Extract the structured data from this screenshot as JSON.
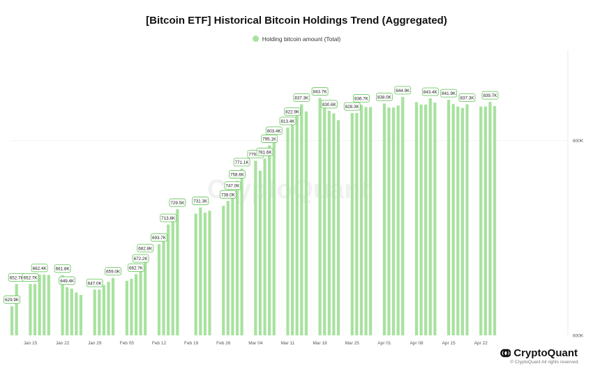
{
  "chart_data": {
    "type": "bar",
    "title": "[Bitcoin ETF] Historical Bitcoin Holdings Trend (Aggregated)",
    "legend": "Holding bitcoin amount (Total)",
    "watermark": "CryptoQuant",
    "bar_color": "#a8e29f",
    "ylim": [
      600,
      900
    ],
    "y_ticks": [
      "600K",
      "800K"
    ],
    "x_ticks": [
      "Jan 15",
      "Jan 22",
      "Jan 29",
      "Feb 05",
      "Feb 12",
      "Feb 19",
      "Feb 26",
      "Mar 04",
      "Mar 11",
      "Mar 18",
      "Mar 25",
      "Apr 01",
      "Apr 08",
      "Apr 15",
      "Apr 22"
    ],
    "days": [
      {
        "date": "2024-01-11",
        "value": 629.9,
        "label": "629.9K"
      },
      {
        "date": "2024-01-12",
        "value": 652.7,
        "label": "652.7K"
      },
      {
        "date": "2024-01-13",
        "value": null
      },
      {
        "date": "2024-01-14",
        "value": null
      },
      {
        "date": "2024-01-15",
        "value": 652.7,
        "label": "652.7K"
      },
      {
        "date": "2024-01-16",
        "value": 652.7
      },
      {
        "date": "2024-01-17",
        "value": 662.4,
        "label": "662.4K"
      },
      {
        "date": "2024-01-18",
        "value": 662.4
      },
      {
        "date": "2024-01-19",
        "value": 662.0
      },
      {
        "date": "2024-01-20",
        "value": null
      },
      {
        "date": "2024-01-21",
        "value": null
      },
      {
        "date": "2024-01-22",
        "value": 661.8,
        "label": "661.8K"
      },
      {
        "date": "2024-01-23",
        "value": 649.4,
        "label": "649.4K"
      },
      {
        "date": "2024-01-24",
        "value": 648.0
      },
      {
        "date": "2024-01-25",
        "value": 644.0
      },
      {
        "date": "2024-01-26",
        "value": 641.5
      },
      {
        "date": "2024-01-27",
        "value": null
      },
      {
        "date": "2024-01-28",
        "value": null
      },
      {
        "date": "2024-01-29",
        "value": 647.0,
        "label": "647.0K"
      },
      {
        "date": "2024-01-30",
        "value": 647.0
      },
      {
        "date": "2024-01-31",
        "value": 651.5
      },
      {
        "date": "2024-02-01",
        "value": 655.0
      },
      {
        "date": "2024-02-02",
        "value": 659.0,
        "label": "659.0K"
      },
      {
        "date": "2024-02-03",
        "value": null
      },
      {
        "date": "2024-02-04",
        "value": null
      },
      {
        "date": "2024-02-05",
        "value": 656.0
      },
      {
        "date": "2024-02-06",
        "value": 658.0
      },
      {
        "date": "2024-02-07",
        "value": 662.7,
        "label": "662.7K"
      },
      {
        "date": "2024-02-08",
        "value": 672.2,
        "label": "672.2K"
      },
      {
        "date": "2024-02-09",
        "value": 682.8,
        "label": "682.8K"
      },
      {
        "date": "2024-02-10",
        "value": null
      },
      {
        "date": "2024-02-11",
        "value": null
      },
      {
        "date": "2024-02-12",
        "value": 693.7,
        "label": "693.7K"
      },
      {
        "date": "2024-02-13",
        "value": 701.0
      },
      {
        "date": "2024-02-14",
        "value": 713.8,
        "label": "713.8K"
      },
      {
        "date": "2024-02-15",
        "value": 724.0
      },
      {
        "date": "2024-02-16",
        "value": 729.5,
        "label": "729.5K"
      },
      {
        "date": "2024-02-17",
        "value": null
      },
      {
        "date": "2024-02-18",
        "value": null
      },
      {
        "date": "2024-02-19",
        "value": null
      },
      {
        "date": "2024-02-20",
        "value": 725.0
      },
      {
        "date": "2024-02-21",
        "value": 731.3,
        "label": "731.3K"
      },
      {
        "date": "2024-02-22",
        "value": 726.0
      },
      {
        "date": "2024-02-23",
        "value": 728.0
      },
      {
        "date": "2024-02-24",
        "value": null
      },
      {
        "date": "2024-02-25",
        "value": null
      },
      {
        "date": "2024-02-26",
        "value": 733.0
      },
      {
        "date": "2024-02-27",
        "value": 738.0,
        "label": "738.0K"
      },
      {
        "date": "2024-02-28",
        "value": 747.0,
        "label": "747.0K"
      },
      {
        "date": "2024-02-29",
        "value": 758.6,
        "label": "758.6K"
      },
      {
        "date": "2024-03-01",
        "value": 771.1,
        "label": "771.1K"
      },
      {
        "date": "2024-03-02",
        "value": null
      },
      {
        "date": "2024-03-03",
        "value": null
      },
      {
        "date": "2024-03-04",
        "value": 779.3,
        "label": "779.3K"
      },
      {
        "date": "2024-03-05",
        "value": 769.0
      },
      {
        "date": "2024-03-06",
        "value": 781.6,
        "label": "781.6K"
      },
      {
        "date": "2024-03-07",
        "value": 795.1,
        "label": "795.1K"
      },
      {
        "date": "2024-03-08",
        "value": 803.4,
        "label": "803.4K"
      },
      {
        "date": "2024-03-09",
        "value": null
      },
      {
        "date": "2024-03-10",
        "value": null
      },
      {
        "date": "2024-03-11",
        "value": 813.4,
        "label": "813.4K"
      },
      {
        "date": "2024-03-12",
        "value": 822.9,
        "label": "822.9K"
      },
      {
        "date": "2024-03-13",
        "value": 833.0
      },
      {
        "date": "2024-03-14",
        "value": 837.3,
        "label": "837.3K"
      },
      {
        "date": "2024-03-15",
        "value": 830.0
      },
      {
        "date": "2024-03-16",
        "value": null
      },
      {
        "date": "2024-03-17",
        "value": null
      },
      {
        "date": "2024-03-18",
        "value": 843.7,
        "label": "843.7K"
      },
      {
        "date": "2024-03-19",
        "value": 835.0
      },
      {
        "date": "2024-03-20",
        "value": 830.6,
        "label": "830.6K"
      },
      {
        "date": "2024-03-21",
        "value": 828.0
      },
      {
        "date": "2024-03-22",
        "value": 821.0
      },
      {
        "date": "2024-03-23",
        "value": null
      },
      {
        "date": "2024-03-24",
        "value": null
      },
      {
        "date": "2024-03-25",
        "value": 828.3,
        "label": "828.3K"
      },
      {
        "date": "2024-03-26",
        "value": 828.3
      },
      {
        "date": "2024-03-27",
        "value": 836.7,
        "label": "836.7K"
      },
      {
        "date": "2024-03-28",
        "value": 834.5
      },
      {
        "date": "2024-03-29",
        "value": 834.5
      },
      {
        "date": "2024-03-30",
        "value": null
      },
      {
        "date": "2024-03-31",
        "value": null
      },
      {
        "date": "2024-04-01",
        "value": 838.0,
        "label": "838.0K"
      },
      {
        "date": "2024-04-02",
        "value": 834.0
      },
      {
        "date": "2024-04-03",
        "value": 834.0
      },
      {
        "date": "2024-04-04",
        "value": 836.0
      },
      {
        "date": "2024-04-05",
        "value": 844.9,
        "label": "844.9K"
      },
      {
        "date": "2024-04-06",
        "value": null
      },
      {
        "date": "2024-04-07",
        "value": null
      },
      {
        "date": "2024-04-08",
        "value": 839.5
      },
      {
        "date": "2024-04-09",
        "value": 837.0
      },
      {
        "date": "2024-04-10",
        "value": 837.0
      },
      {
        "date": "2024-04-11",
        "value": 843.4,
        "label": "843.4K"
      },
      {
        "date": "2024-04-12",
        "value": 839.0
      },
      {
        "date": "2024-04-13",
        "value": null
      },
      {
        "date": "2024-04-14",
        "value": null
      },
      {
        "date": "2024-04-15",
        "value": 841.9,
        "label": "841.9K"
      },
      {
        "date": "2024-04-16",
        "value": 837.5
      },
      {
        "date": "2024-04-17",
        "value": 835.0
      },
      {
        "date": "2024-04-18",
        "value": 833.5
      },
      {
        "date": "2024-04-19",
        "value": 837.3,
        "label": "837.3K"
      },
      {
        "date": "2024-04-20",
        "value": null
      },
      {
        "date": "2024-04-21",
        "value": null
      },
      {
        "date": "2024-04-22",
        "value": 835.0
      },
      {
        "date": "2024-04-23",
        "value": 835.0
      },
      {
        "date": "2024-04-24",
        "value": 839.7,
        "label": "839.7K"
      },
      {
        "date": "2024-04-25",
        "value": 835.5
      }
    ]
  },
  "footer": {
    "brand": "CryptoQuant",
    "copyright": "© CryptoQuant All rights reserved."
  }
}
